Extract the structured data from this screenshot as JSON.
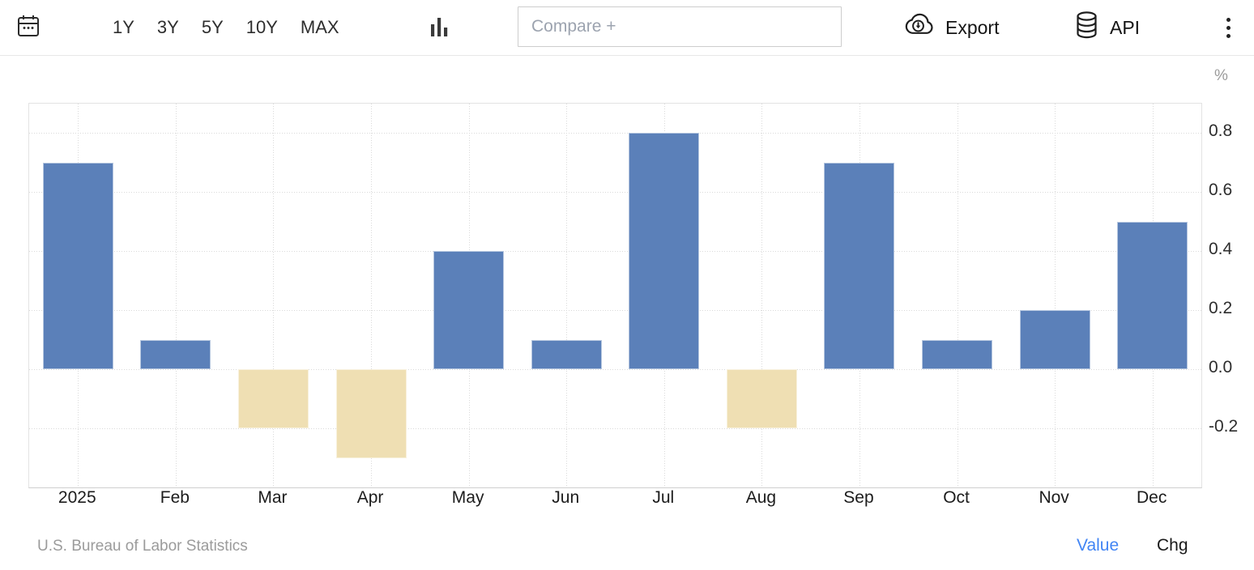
{
  "toolbar": {
    "calendar_icon": "calendar-icon",
    "ranges": [
      "1Y",
      "3Y",
      "5Y",
      "10Y",
      "MAX"
    ],
    "chart_type_icon": "column-chart-icon",
    "compare_placeholder": "Compare +",
    "export_label": "Export",
    "export_icon": "cloud-download-icon",
    "api_label": "API",
    "api_icon": "database-icon",
    "menu_icon": "kebab-menu-icon"
  },
  "chart_data": {
    "type": "bar",
    "unit_label": "%",
    "categories": [
      "2025",
      "Feb",
      "Mar",
      "Apr",
      "May",
      "Jun",
      "Jul",
      "Aug",
      "Sep",
      "Oct",
      "Nov",
      "Dec"
    ],
    "values": [
      0.7,
      0.1,
      -0.2,
      -0.3,
      0.4,
      0.1,
      0.8,
      -0.2,
      0.7,
      0.1,
      0.2,
      0.5
    ],
    "y_ticks": [
      0.8,
      0.6,
      0.4,
      0.2,
      0.0,
      -0.2
    ],
    "y_tick_labels": [
      "0.8",
      "0.6",
      "0.4",
      "0.2",
      "0.0",
      "-0.2"
    ],
    "ylim": [
      -0.4,
      0.9
    ],
    "grid": true,
    "axis_labels_side": "right",
    "legend_position": "none",
    "colors": {
      "positive_bar": "#5b80b9",
      "negative_bar": "#efdfb3",
      "grid_line": "#dadada",
      "value_link": "#4285f4"
    }
  },
  "footer": {
    "source": "U.S. Bureau of Labor Statistics",
    "value_label": "Value",
    "chg_label": "Chg"
  }
}
